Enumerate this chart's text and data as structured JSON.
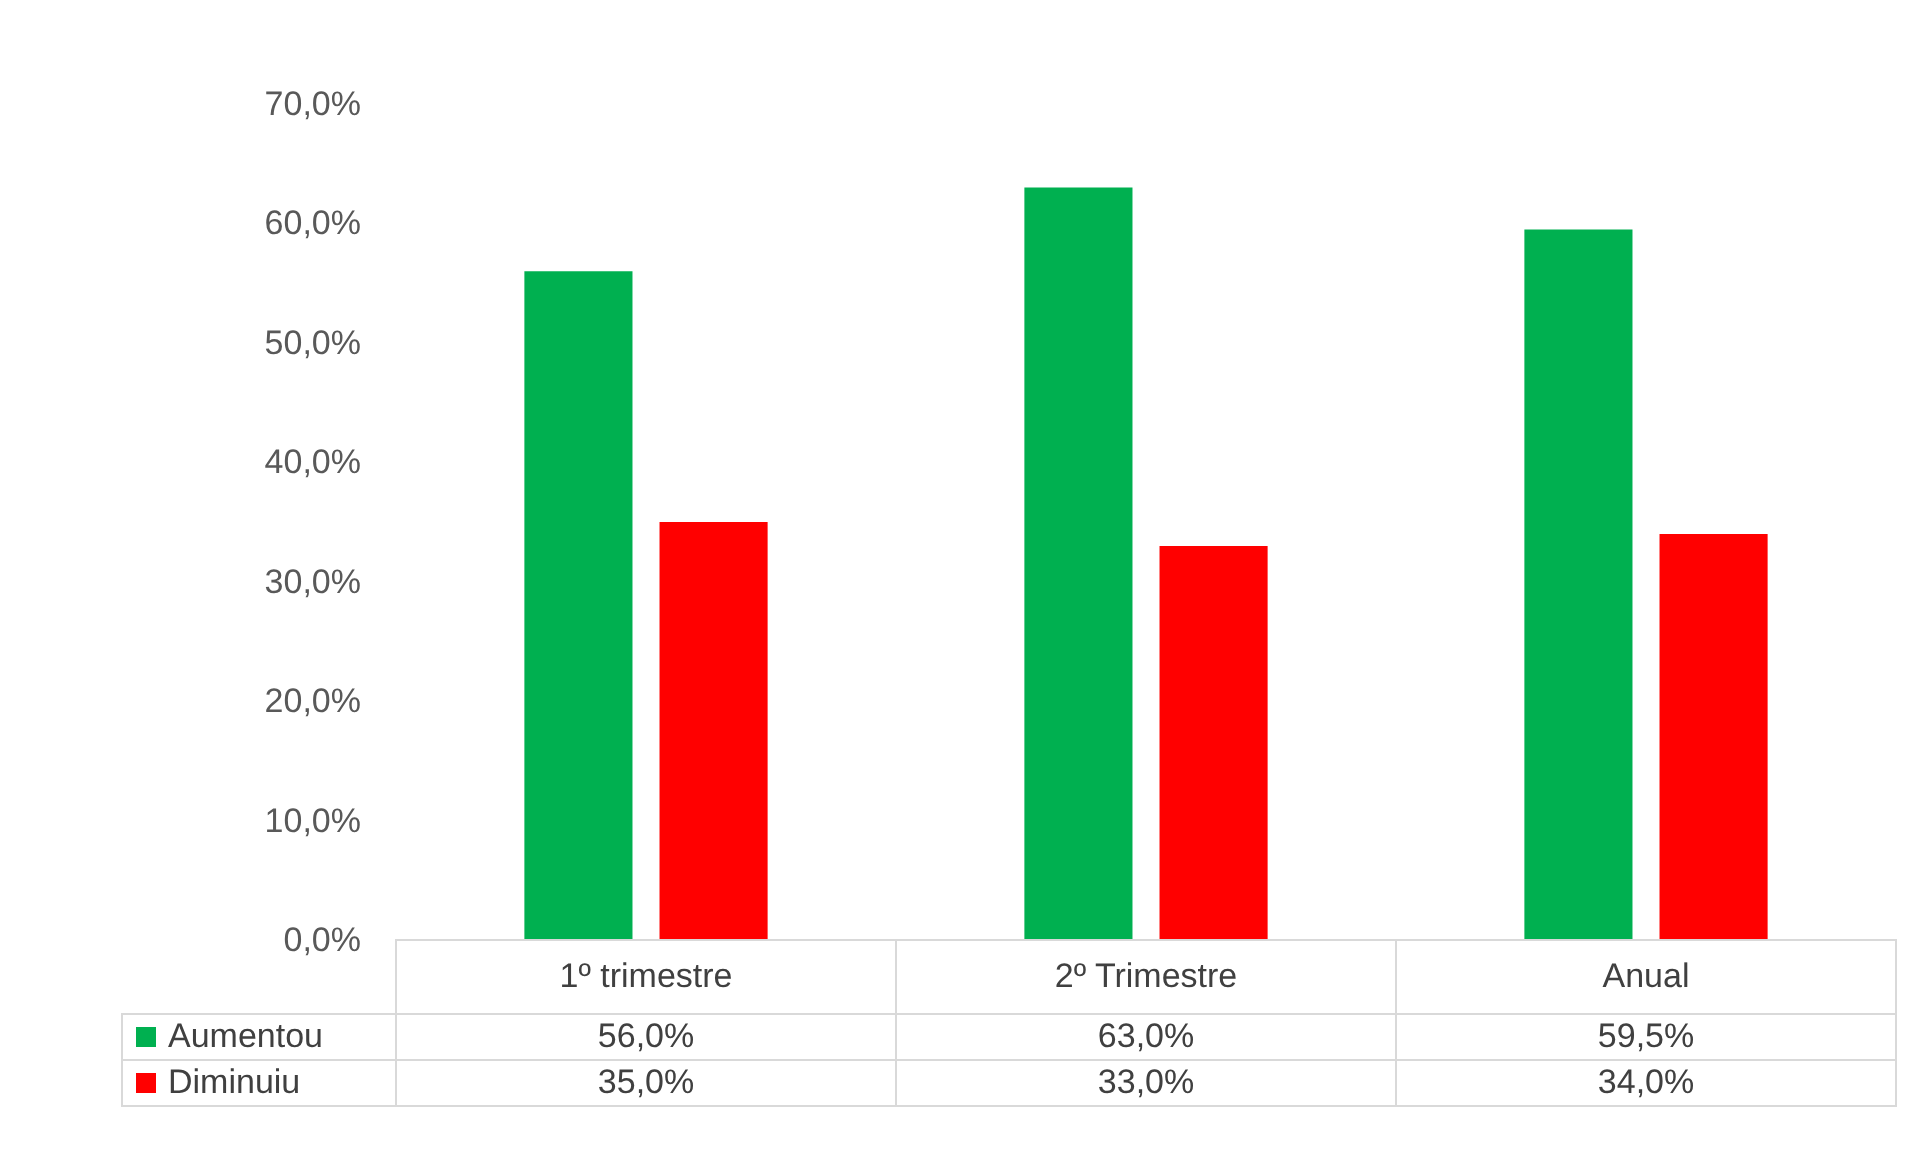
{
  "chart_data": {
    "type": "bar",
    "categories": [
      "1º trimestre",
      "2º Trimestre",
      "Anual"
    ],
    "series": [
      {
        "name": "Aumentou",
        "color": "#00b050",
        "values": [
          56.0,
          63.0,
          59.5
        ],
        "value_labels": [
          "56,0%",
          "63,0%",
          "59,5%"
        ]
      },
      {
        "name": "Diminuiu",
        "color": "#ff0000",
        "values": [
          35.0,
          33.0,
          34.0
        ],
        "value_labels": [
          "35,0%",
          "33,0%",
          "34,0%"
        ]
      }
    ],
    "ylim": [
      0,
      70
    ],
    "yticks": [
      {
        "value": 0,
        "label": "0,0%"
      },
      {
        "value": 10,
        "label": "10,0%"
      },
      {
        "value": 20,
        "label": "20,0%"
      },
      {
        "value": 30,
        "label": "30,0%"
      },
      {
        "value": 40,
        "label": "40,0%"
      },
      {
        "value": 50,
        "label": "50,0%"
      },
      {
        "value": 60,
        "label": "60,0%"
      },
      {
        "value": 70,
        "label": "70,0%"
      }
    ],
    "grid": false,
    "legend": "bottom"
  }
}
